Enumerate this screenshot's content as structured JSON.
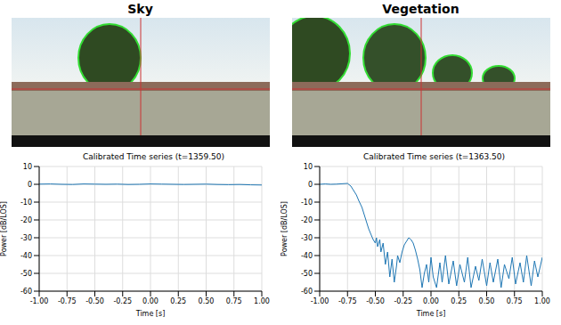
{
  "chart_data": [
    {
      "type": "line",
      "panel_title": "Sky",
      "title": "Calibrated Time series (t=1359.50)",
      "x_label": "Time [s]",
      "y_label": "Power [dB/LOS]",
      "xlim": [
        -1,
        1
      ],
      "ylim": [
        -60,
        10
      ],
      "xticks": [
        {
          "value": -1,
          "label": "-1.00"
        },
        {
          "value": -0.75,
          "label": "-0.75"
        },
        {
          "value": -0.5,
          "label": "-0.50"
        },
        {
          "value": -0.25,
          "label": "-0.25"
        },
        {
          "value": 0,
          "label": "0.00"
        },
        {
          "value": 0.25,
          "label": "0.25"
        },
        {
          "value": 0.5,
          "label": "0.50"
        },
        {
          "value": 0.75,
          "label": "0.75"
        },
        {
          "value": 1,
          "label": "1.00"
        }
      ],
      "yticks": [
        10,
        0,
        -10,
        -20,
        -30,
        -40,
        -50,
        -60
      ],
      "grid": true,
      "series": [
        {
          "name": "Power",
          "color": "#1f77b4",
          "x": [
            -1,
            -0.9,
            -0.8,
            -0.7,
            -0.6,
            -0.5,
            -0.4,
            -0.3,
            -0.2,
            -0.1,
            0,
            0.1,
            0.2,
            0.3,
            0.4,
            0.5,
            0.6,
            0.7,
            0.8,
            0.9,
            1
          ],
          "values": [
            0.1,
            0.2,
            0,
            -0.1,
            0.2,
            0.1,
            0,
            0.1,
            -0.1,
            0,
            0.2,
            0.1,
            0,
            -0.1,
            0,
            0.1,
            -0.1,
            -0.2,
            -0.1,
            -0.3,
            -0.4
          ]
        }
      ]
    },
    {
      "type": "line",
      "panel_title": "Vegetation",
      "title": "Calibrated Time series (t=1363.50)",
      "x_label": "Time [s]",
      "y_label": "Power [dB/LOS]",
      "xlim": [
        -1,
        1
      ],
      "ylim": [
        -60,
        10
      ],
      "xticks": [
        {
          "value": -1,
          "label": "-1.00"
        },
        {
          "value": -0.75,
          "label": "-0.75"
        },
        {
          "value": -0.5,
          "label": "-0.50"
        },
        {
          "value": -0.25,
          "label": "-0.25"
        },
        {
          "value": 0,
          "label": "0.00"
        },
        {
          "value": 0.25,
          "label": "0.25"
        },
        {
          "value": 0.5,
          "label": "0.50"
        },
        {
          "value": 0.75,
          "label": "0.75"
        },
        {
          "value": 1,
          "label": "1.00"
        }
      ],
      "yticks": [
        10,
        0,
        -10,
        -20,
        -30,
        -40,
        -50,
        -60
      ],
      "grid": true,
      "series": [
        {
          "name": "Power",
          "color": "#1f77b4",
          "x": [
            -1,
            -0.95,
            -0.9,
            -0.85,
            -0.8,
            -0.75,
            -0.72,
            -0.7,
            -0.67,
            -0.65,
            -0.62,
            -0.6,
            -0.58,
            -0.56,
            -0.54,
            -0.52,
            -0.5,
            -0.49,
            -0.48,
            -0.46,
            -0.45,
            -0.43,
            -0.41,
            -0.39,
            -0.37,
            -0.35,
            -0.33,
            -0.31,
            -0.3,
            -0.28,
            -0.26,
            -0.24,
            -0.22,
            -0.2,
            -0.18,
            -0.16,
            -0.14,
            -0.12,
            -0.1,
            -0.08,
            -0.06,
            -0.04,
            -0.02,
            0,
            0.02,
            0.05,
            0.08,
            0.1,
            0.13,
            0.16,
            0.2,
            0.23,
            0.26,
            0.3,
            0.33,
            0.36,
            0.4,
            0.43,
            0.46,
            0.5,
            0.53,
            0.56,
            0.6,
            0.63,
            0.66,
            0.7,
            0.73,
            0.76,
            0.8,
            0.83,
            0.86,
            0.9,
            0.93,
            0.96,
            1
          ],
          "values": [
            0,
            0.2,
            0,
            0.1,
            0.3,
            0.5,
            -1,
            -3,
            -6,
            -9,
            -13,
            -17,
            -21,
            -25,
            -28,
            -31,
            -33,
            -30,
            -35,
            -31,
            -38,
            -33,
            -45,
            -38,
            -52,
            -42,
            -55,
            -46,
            -40,
            -44,
            -38,
            -34,
            -32,
            -30,
            -31,
            -33,
            -37,
            -42,
            -48,
            -58,
            -50,
            -45,
            -55,
            -41,
            -52,
            -58,
            -44,
            -55,
            -40,
            -56,
            -43,
            -57,
            -45,
            -55,
            -41,
            -58,
            -46,
            -54,
            -42,
            -57,
            -44,
            -55,
            -42,
            -58,
            -45,
            -53,
            -41,
            -56,
            -44,
            -55,
            -40,
            -57,
            -43,
            -52,
            -41
          ]
        }
      ]
    }
  ]
}
